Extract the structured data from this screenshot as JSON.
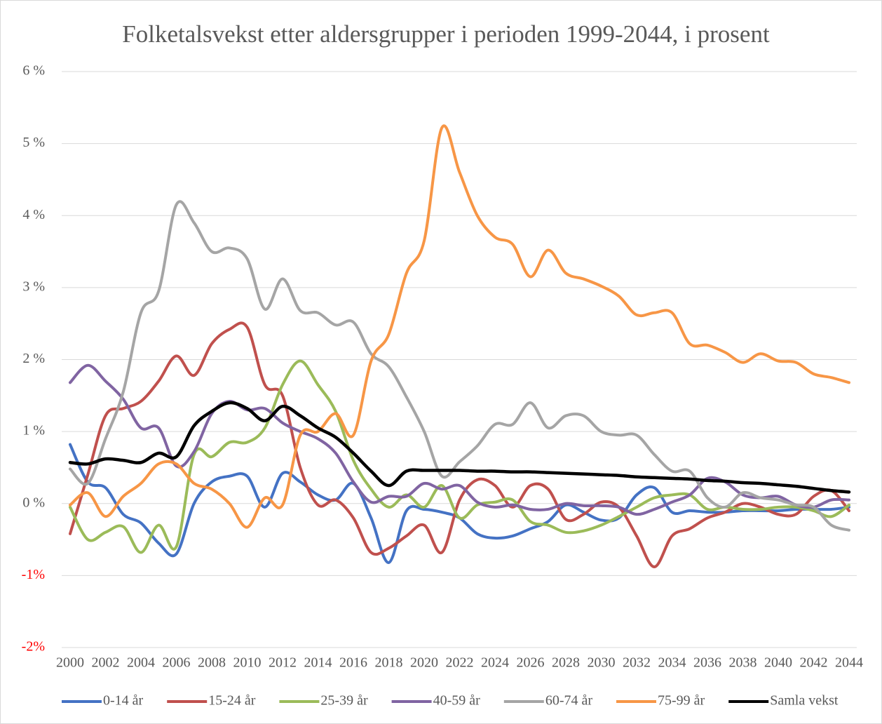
{
  "chart_data": {
    "type": "line",
    "title": "Folketalsvekst etter aldersgrupper i perioden 1999-2044, i prosent",
    "x": [
      2000,
      2001,
      2002,
      2003,
      2004,
      2005,
      2006,
      2007,
      2008,
      2009,
      2010,
      2011,
      2012,
      2013,
      2014,
      2015,
      2016,
      2017,
      2018,
      2019,
      2020,
      2021,
      2022,
      2023,
      2024,
      2025,
      2026,
      2027,
      2028,
      2029,
      2030,
      2031,
      2032,
      2033,
      2034,
      2035,
      2036,
      2037,
      2038,
      2039,
      2040,
      2041,
      2042,
      2043,
      2044
    ],
    "xlim": [
      2000,
      2044
    ],
    "xticks": [
      2000,
      2002,
      2004,
      2006,
      2008,
      2010,
      2012,
      2014,
      2016,
      2018,
      2020,
      2022,
      2024,
      2026,
      2028,
      2030,
      2032,
      2034,
      2036,
      2038,
      2040,
      2042,
      2044
    ],
    "ylim": [
      -2,
      6
    ],
    "yticks": [
      {
        "value": -2,
        "label": "-2%"
      },
      {
        "value": -1,
        "label": "-1%"
      },
      {
        "value": 0,
        "label": "0 %"
      },
      {
        "value": 1,
        "label": "1 %"
      },
      {
        "value": 2,
        "label": "2 %"
      },
      {
        "value": 3,
        "label": "3 %"
      },
      {
        "value": 4,
        "label": "4 %"
      },
      {
        "value": 5,
        "label": "5 %"
      },
      {
        "value": 6,
        "label": "6 %"
      }
    ],
    "grid": true,
    "legend": "bottom",
    "series": [
      {
        "name": "0-14 år",
        "color": "#4472c4",
        "values": [
          0.82,
          0.3,
          0.22,
          -0.15,
          -0.27,
          -0.55,
          -0.7,
          0.0,
          0.3,
          0.38,
          0.38,
          -0.05,
          0.42,
          0.3,
          0.12,
          0.05,
          0.28,
          -0.2,
          -0.82,
          -0.1,
          -0.08,
          -0.12,
          -0.2,
          -0.42,
          -0.48,
          -0.45,
          -0.35,
          -0.25,
          -0.02,
          -0.12,
          -0.23,
          -0.2,
          0.12,
          0.22,
          -0.12,
          -0.1,
          -0.12,
          -0.12,
          -0.1,
          -0.1,
          -0.1,
          -0.08,
          -0.08,
          -0.08,
          -0.05
        ]
      },
      {
        "name": "15-24 år",
        "color": "#c0504d",
        "values": [
          -0.42,
          0.4,
          1.22,
          1.32,
          1.42,
          1.7,
          2.05,
          1.78,
          2.22,
          2.42,
          2.45,
          1.65,
          1.5,
          0.5,
          -0.02,
          0.05,
          -0.2,
          -0.68,
          -0.62,
          -0.45,
          -0.3,
          -0.68,
          0.05,
          0.33,
          0.25,
          -0.05,
          0.25,
          0.2,
          -0.22,
          -0.15,
          0.02,
          -0.05,
          -0.45,
          -0.88,
          -0.45,
          -0.35,
          -0.2,
          -0.12,
          0.0,
          -0.05,
          -0.15,
          -0.15,
          0.1,
          0.18,
          -0.1
        ]
      },
      {
        "name": "25-39 år",
        "color": "#9bbb59",
        "values": [
          -0.05,
          -0.5,
          -0.4,
          -0.32,
          -0.68,
          -0.3,
          -0.6,
          0.68,
          0.65,
          0.85,
          0.85,
          1.05,
          1.65,
          1.98,
          1.65,
          1.28,
          0.6,
          0.2,
          -0.05,
          0.12,
          -0.05,
          0.25,
          -0.2,
          -0.02,
          0.02,
          0.05,
          -0.25,
          -0.3,
          -0.4,
          -0.38,
          -0.3,
          -0.18,
          -0.05,
          0.08,
          0.12,
          0.12,
          -0.08,
          -0.05,
          -0.08,
          -0.08,
          -0.05,
          -0.05,
          -0.1,
          -0.18,
          -0.02
        ]
      },
      {
        "name": "40-59 år",
        "color": "#8064a2",
        "values": [
          1.68,
          1.92,
          1.7,
          1.45,
          1.05,
          1.05,
          0.52,
          0.72,
          1.25,
          1.42,
          1.3,
          1.32,
          1.12,
          1.0,
          0.9,
          0.7,
          0.3,
          0.02,
          0.1,
          0.1,
          0.28,
          0.2,
          0.25,
          0.02,
          -0.05,
          -0.02,
          -0.08,
          -0.08,
          0.0,
          -0.03,
          -0.03,
          -0.05,
          -0.15,
          -0.08,
          0.02,
          0.12,
          0.35,
          0.3,
          0.12,
          0.08,
          0.1,
          -0.02,
          -0.05,
          0.05,
          0.05
        ]
      },
      {
        "name": "60-74 år",
        "color": "#a5a5a5",
        "values": [
          0.48,
          0.28,
          0.9,
          1.55,
          2.65,
          2.95,
          4.15,
          3.9,
          3.5,
          3.55,
          3.4,
          2.7,
          3.12,
          2.68,
          2.65,
          2.48,
          2.52,
          2.08,
          1.9,
          1.48,
          1.0,
          0.38,
          0.58,
          0.8,
          1.1,
          1.1,
          1.4,
          1.05,
          1.22,
          1.22,
          1.0,
          0.95,
          0.95,
          0.68,
          0.45,
          0.45,
          0.08,
          -0.05,
          0.15,
          0.08,
          0.05,
          -0.02,
          -0.05,
          -0.3,
          -0.37
        ]
      },
      {
        "name": "75-99 år",
        "color": "#f79646",
        "values": [
          -0.02,
          0.15,
          -0.18,
          0.1,
          0.28,
          0.55,
          0.55,
          0.28,
          0.2,
          0.0,
          -0.33,
          0.08,
          -0.02,
          0.95,
          1.0,
          1.25,
          0.95,
          1.98,
          2.35,
          3.2,
          3.65,
          5.22,
          4.6,
          4.0,
          3.7,
          3.6,
          3.15,
          3.52,
          3.2,
          3.12,
          3.02,
          2.88,
          2.62,
          2.65,
          2.65,
          2.22,
          2.2,
          2.1,
          1.96,
          2.08,
          1.98,
          1.96,
          1.8,
          1.75,
          1.68
        ]
      },
      {
        "name": "Samla vekst",
        "color": "#000000",
        "values": [
          0.57,
          0.55,
          0.62,
          0.6,
          0.57,
          0.7,
          0.65,
          1.08,
          1.28,
          1.4,
          1.32,
          1.15,
          1.35,
          1.22,
          1.05,
          0.92,
          0.7,
          0.45,
          0.25,
          0.45,
          0.46,
          0.46,
          0.46,
          0.45,
          0.45,
          0.44,
          0.44,
          0.43,
          0.42,
          0.41,
          0.4,
          0.39,
          0.37,
          0.36,
          0.35,
          0.34,
          0.32,
          0.31,
          0.29,
          0.28,
          0.26,
          0.24,
          0.21,
          0.18,
          0.16
        ]
      }
    ]
  }
}
